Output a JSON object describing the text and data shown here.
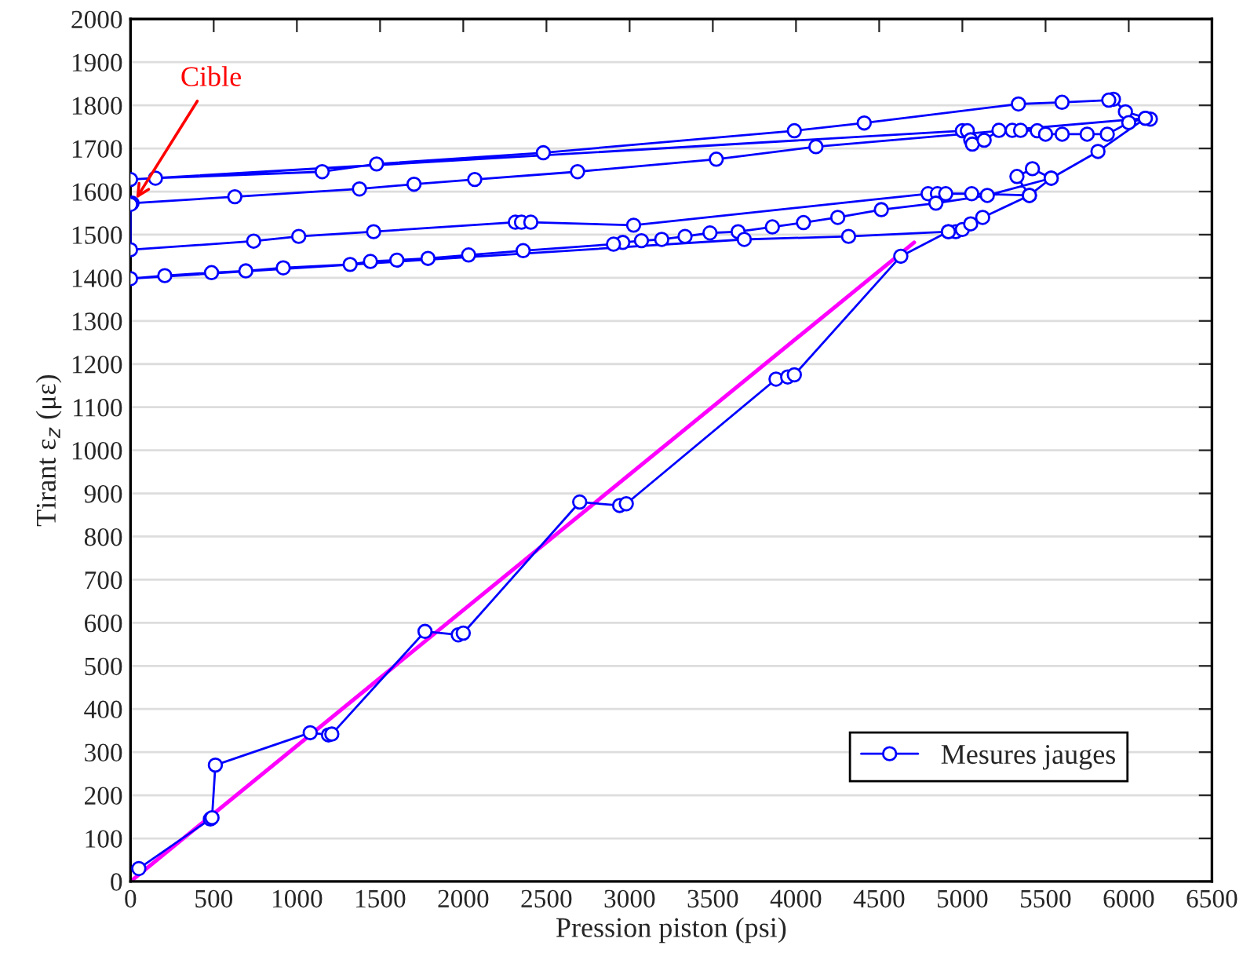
{
  "chart_data": {
    "type": "line",
    "xlabel": "Pression piston (psi)",
    "ylabel": "Tirant ε$_{z}$ (με)",
    "xlim": [
      0,
      6500
    ],
    "xticks": [
      0,
      500,
      1000,
      1500,
      2000,
      2500,
      3000,
      3500,
      4000,
      4500,
      5000,
      5500,
      6000,
      6500
    ],
    "ylim": [
      0,
      2000
    ],
    "yticks": [
      0,
      100,
      200,
      300,
      400,
      500,
      600,
      700,
      800,
      900,
      1000,
      1100,
      1200,
      1300,
      1400,
      1500,
      1600,
      1700,
      1800,
      1900,
      2000
    ],
    "grid": "y",
    "legend": "bottom right",
    "annotations": [
      {
        "text": "Cible",
        "x": 20,
        "y": 1575
      }
    ],
    "series": [
      {
        "name": "Mesures jauges",
        "color": "#0000ff",
        "marker": "circle",
        "x": [
          50,
          480,
          490,
          510,
          1080,
          1190,
          1210,
          1770,
          1970,
          2000,
          2700,
          2940,
          2980,
          3880,
          3950,
          3990,
          4630,
          4916,
          4960,
          5000,
          5050,
          5122,
          5403,
          5328,
          5421,
          5534,
          5815,
          6100,
          6130,
          5980,
          5908,
          5880,
          5599,
          5337,
          4410,
          3990,
          2481,
          1479,
          1152,
          150,
          0,
          5000,
          5030,
          5050,
          5060,
          5131,
          5220,
          5300,
          5350,
          5450,
          5500,
          5600,
          5750,
          5871,
          6000,
          6100,
          4120,
          3521,
          2687,
          2069,
          1704,
          1376,
          627,
          9,
          0,
          0,
          740,
          1011,
          1461,
          2313,
          2350,
          2406,
          3024,
          4794,
          4850,
          4900,
          5056,
          5403,
          5534,
          5150,
          4841,
          4513,
          4251,
          4045,
          3858,
          3652,
          3483,
          3333,
          3193,
          3071,
          2959,
          2903,
          2360,
          2032,
          1788,
          1601,
          1442,
          1320,
          918,
          693,
          487,
          206,
          0,
          3689,
          4316,
          4916
        ],
        "values": [
          30,
          145,
          148,
          270,
          345,
          340,
          342,
          580,
          572,
          576,
          880,
          872,
          876,
          1165,
          1170,
          1175,
          1450,
          1507,
          1507,
          1512,
          1525,
          1540,
          1591,
          1635,
          1653,
          1631,
          1693,
          1770,
          1768,
          1785,
          1814,
          1812,
          1807,
          1803,
          1759,
          1741,
          1690,
          1664,
          1646,
          1631,
          1628,
          1741,
          1741,
          1720,
          1710,
          1719,
          1742,
          1742,
          1742,
          1741,
          1733,
          1733,
          1733,
          1733,
          1760,
          1770,
          1704,
          1675,
          1646,
          1628,
          1617,
          1606,
          1588,
          1573,
          1570,
          1465,
          1485,
          1496,
          1507,
          1529,
          1529,
          1529,
          1522,
          1595,
          1595,
          1595,
          1595,
          1591,
          1631,
          1591,
          1573,
          1558,
          1540,
          1528,
          1518,
          1507,
          1504,
          1496,
          1489,
          1486,
          1482,
          1478,
          1463,
          1453,
          1445,
          1441,
          1438,
          1431,
          1423,
          1416,
          1412,
          1405,
          1398,
          1489,
          1496,
          1507
        ]
      },
      {
        "color": "#ff00ff",
        "marker": "none",
        "x": [
          0,
          4710
        ],
        "values": [
          0,
          1482
        ]
      }
    ]
  }
}
